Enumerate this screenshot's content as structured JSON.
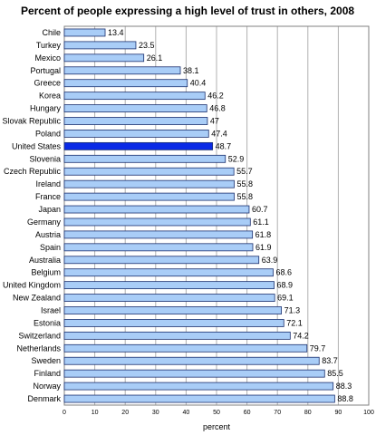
{
  "chart_data": {
    "type": "bar",
    "orientation": "horizontal",
    "title": "Percent of people expressing a high level of trust in others, 2008",
    "xlabel": "percent",
    "ylabel": "",
    "xlim": [
      0,
      100
    ],
    "x_ticks": [
      0,
      10,
      20,
      30,
      40,
      50,
      60,
      70,
      80,
      90,
      100
    ],
    "grid": true,
    "legend": "none",
    "colors": {
      "bar_fill": "#a9cdf7",
      "bar_stroke": "#1a2f6e",
      "highlight_fill": "#0a2ae6",
      "grid": "#b0b0b0"
    },
    "highlight": "United States",
    "categories": [
      "Chile",
      "Turkey",
      "Mexico",
      "Portugal",
      "Greece",
      "Korea",
      "Hungary",
      "Slovak Republic",
      "Poland",
      "United States",
      "Slovenia",
      "Czech Republic",
      "Ireland",
      "France",
      "Japan",
      "Germany",
      "Austria",
      "Spain",
      "Australia",
      "Belgium",
      "United Kingdom",
      "New Zealand",
      "Israel",
      "Estonia",
      "Switzerland",
      "Netherlands",
      "Sweden",
      "Finland",
      "Norway",
      "Denmark"
    ],
    "values": [
      13.4,
      23.5,
      26.1,
      38.1,
      40.4,
      46.2,
      46.8,
      47,
      47.4,
      48.7,
      52.9,
      55.7,
      55.8,
      55.8,
      60.7,
      61.1,
      61.8,
      61.9,
      63.9,
      68.6,
      68.9,
      69.1,
      71.3,
      72.1,
      74.2,
      79.7,
      83.7,
      85.5,
      88.3,
      88.8
    ],
    "value_labels": [
      "13.4",
      "23.5",
      "26.1",
      "38.1",
      "40.4",
      "46.2",
      "46.8",
      "47",
      "47.4",
      "48.7",
      "52.9",
      "55.7",
      "55.8",
      "55.8",
      "60.7",
      "61.1",
      "61.8",
      "61.9",
      "63.9",
      "68.6",
      "68.9",
      "69.1",
      "71.3",
      "72.1",
      "74.2",
      "79.7",
      "83.7",
      "85.5",
      "88.3",
      "88.8"
    ]
  }
}
